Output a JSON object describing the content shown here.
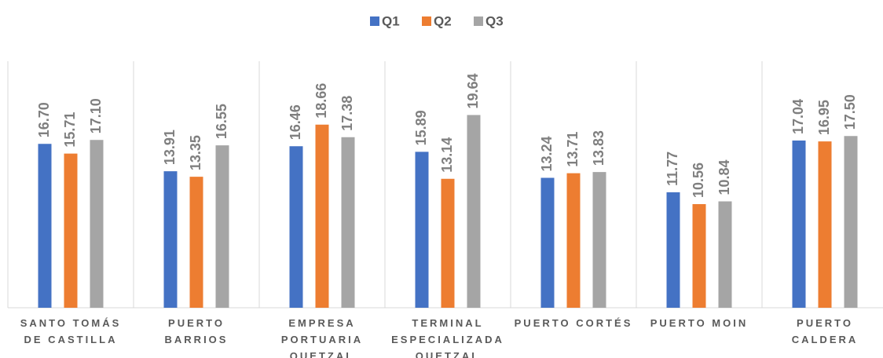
{
  "chart_data": {
    "type": "bar",
    "categories": [
      "SANTO TOMÁS DE CASTILLA",
      "PUERTO BARRIOS",
      "EMPRESA PORTUARIA QUETZAL",
      "TERMINAL ESPECIALIZADA QUETZAL",
      "PUERTO CORTÉS",
      "PUERTO MOIN",
      "PUERTO CALDERA"
    ],
    "series": [
      {
        "name": "Q1",
        "color": "#4472c4",
        "values": [
          16.7,
          13.91,
          16.46,
          15.89,
          13.24,
          11.77,
          17.04
        ],
        "value_labels": [
          "16.70",
          "13.91",
          "16.46",
          "15.89",
          "13.24",
          "11.77",
          "17.04"
        ]
      },
      {
        "name": "Q2",
        "color": "#ed7d31",
        "values": [
          15.71,
          13.35,
          18.66,
          13.14,
          13.71,
          10.56,
          16.95
        ],
        "value_labels": [
          "15.71",
          "13.35",
          "18.66",
          "13.14",
          "13.71",
          "10.56",
          "16.95"
        ]
      },
      {
        "name": "Q3",
        "color": "#a5a5a5",
        "values": [
          17.1,
          16.55,
          17.38,
          19.64,
          13.83,
          10.84,
          17.5
        ],
        "value_labels": [
          "17.10",
          "16.55",
          "17.38",
          "19.64",
          "13.83",
          "10.84",
          "17.50"
        ]
      }
    ],
    "legend": "top"
  }
}
